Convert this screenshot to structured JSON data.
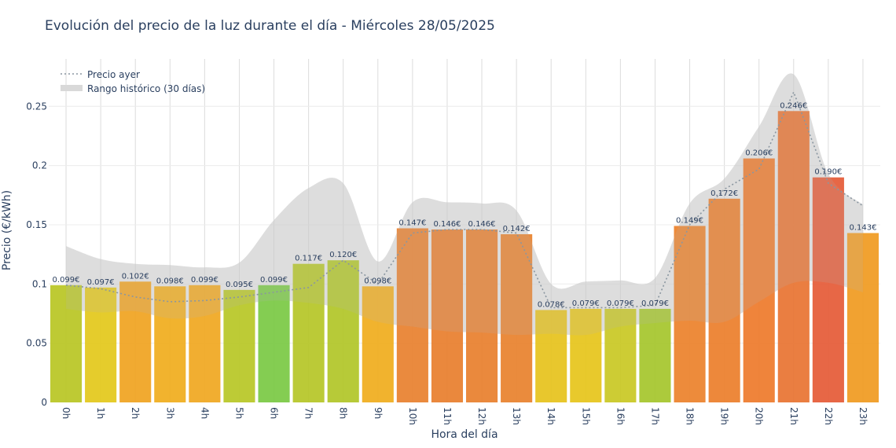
{
  "chart_data": {
    "type": "bar",
    "title": "Evolución del precio de la luz durante el día - Miércoles 28/05/2025",
    "xlabel": "Hora del día",
    "ylabel": "Precio (€/kWh)",
    "ylim": [
      0,
      0.29
    ],
    "yticks": [
      0,
      0.05,
      0.1,
      0.15,
      0.2,
      0.25
    ],
    "ytick_labels": [
      "0",
      "0.05",
      "0.1",
      "0.15",
      "0.2",
      "0.25"
    ],
    "grid": true,
    "legend_position": "top-left",
    "categories": [
      "0h",
      "1h",
      "2h",
      "3h",
      "4h",
      "5h",
      "6h",
      "7h",
      "8h",
      "9h",
      "10h",
      "11h",
      "12h",
      "13h",
      "14h",
      "15h",
      "16h",
      "17h",
      "18h",
      "19h",
      "20h",
      "21h",
      "22h",
      "23h"
    ],
    "series": [
      {
        "type": "bar",
        "values": [
          0.099,
          0.097,
          0.102,
          0.098,
          0.099,
          0.095,
          0.099,
          0.117,
          0.12,
          0.098,
          0.147,
          0.146,
          0.146,
          0.142,
          0.078,
          0.079,
          0.079,
          0.079,
          0.149,
          0.172,
          0.206,
          0.246,
          0.19,
          0.143
        ],
        "labels": [
          "0.099€",
          "0.097€",
          "0.102€",
          "0.098€",
          "0.099€",
          "0.095€",
          "0.099€",
          "0.117€",
          "0.120€",
          "0.098€",
          "0.147€",
          "0.146€",
          "0.146€",
          "0.142€",
          "0.078€",
          "0.079€",
          "0.079€",
          "0.079€",
          "0.149€",
          "0.172€",
          "0.206€",
          "0.246€",
          "0.190€",
          "0.143€"
        ],
        "colors": [
          "#b9c623",
          "#e3c81a",
          "#f0a31f",
          "#f0ad1c",
          "#f0a71f",
          "#b7c725",
          "#7ac943",
          "#b5c626",
          "#b1c527",
          "#f0ad1c",
          "#e8802e",
          "#e87e2d",
          "#e87f2d",
          "#e8812c",
          "#e6c21b",
          "#e6c41a",
          "#c9c823",
          "#a5c52b",
          "#ec812a",
          "#ec7e2a",
          "#ee7a2a",
          "#e87331",
          "#e55a36",
          "#f09a20"
        ]
      },
      {
        "name": "Precio ayer",
        "type": "line",
        "style": "dotted",
        "color": "#8a96a0",
        "values": [
          0.099,
          0.096,
          0.089,
          0.085,
          0.086,
          0.089,
          0.093,
          0.097,
          0.12,
          0.1,
          0.143,
          0.146,
          0.146,
          0.143,
          0.08,
          0.08,
          0.08,
          0.082,
          0.15,
          0.18,
          0.197,
          0.262,
          0.185,
          0.166
        ]
      },
      {
        "name": "Rango histórico (30 días)",
        "type": "area-band",
        "color": "#d0d0d0",
        "min": [
          0.079,
          0.076,
          0.077,
          0.071,
          0.073,
          0.082,
          0.086,
          0.084,
          0.079,
          0.068,
          0.064,
          0.06,
          0.059,
          0.057,
          0.058,
          0.057,
          0.064,
          0.067,
          0.069,
          0.068,
          0.085,
          0.101,
          0.101,
          0.093
        ],
        "max": [
          0.132,
          0.121,
          0.117,
          0.116,
          0.114,
          0.118,
          0.154,
          0.181,
          0.185,
          0.119,
          0.169,
          0.169,
          0.168,
          0.162,
          0.1,
          0.102,
          0.103,
          0.105,
          0.168,
          0.189,
          0.233,
          0.277,
          0.193,
          0.167
        ]
      }
    ]
  }
}
